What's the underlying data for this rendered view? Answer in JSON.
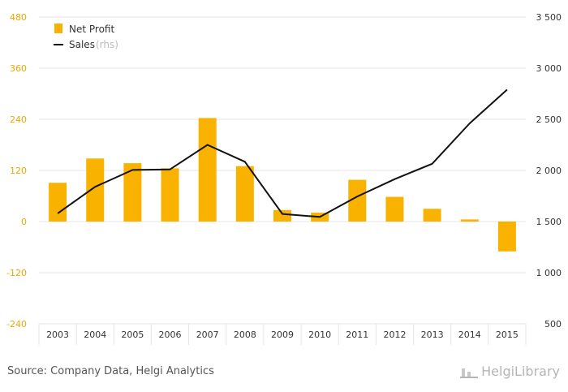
{
  "chart_data": {
    "type": "bar",
    "categories": [
      "2003",
      "2004",
      "2005",
      "2006",
      "2007",
      "2008",
      "2009",
      "2010",
      "2011",
      "2012",
      "2013",
      "2014",
      "2015"
    ],
    "series": [
      {
        "name": "Net Profit",
        "type": "bar",
        "axis": "left",
        "color": "#f9b200",
        "values": [
          91,
          148,
          137,
          125,
          243,
          130,
          27,
          21,
          98,
          58,
          30,
          5,
          -70
        ]
      },
      {
        "name": "Sales",
        "type": "line",
        "axis": "right",
        "color": "#111111",
        "values": [
          1580,
          1840,
          2005,
          2010,
          2250,
          2085,
          1575,
          1545,
          1745,
          1915,
          2065,
          2460,
          2790
        ]
      }
    ],
    "legend": {
      "items": [
        {
          "label": "Net Profit",
          "note": ""
        },
        {
          "label": "Sales",
          "note": "(rhs)"
        }
      ],
      "position": "top-left"
    },
    "yaxis_left": {
      "ticks": [
        "480",
        "360",
        "240",
        "120",
        "0",
        "-120",
        "-240"
      ],
      "ylim": [
        -240,
        480
      ]
    },
    "yaxis_right": {
      "ticks": [
        "3 500",
        "3 000",
        "2 500",
        "2 000",
        "1 500",
        "1 000",
        "500"
      ],
      "ylim": [
        500,
        3500
      ]
    },
    "grid": true
  },
  "footer": {
    "source": "Source: Company Data, Helgi Analytics",
    "brand": "HelgiLibrary"
  }
}
